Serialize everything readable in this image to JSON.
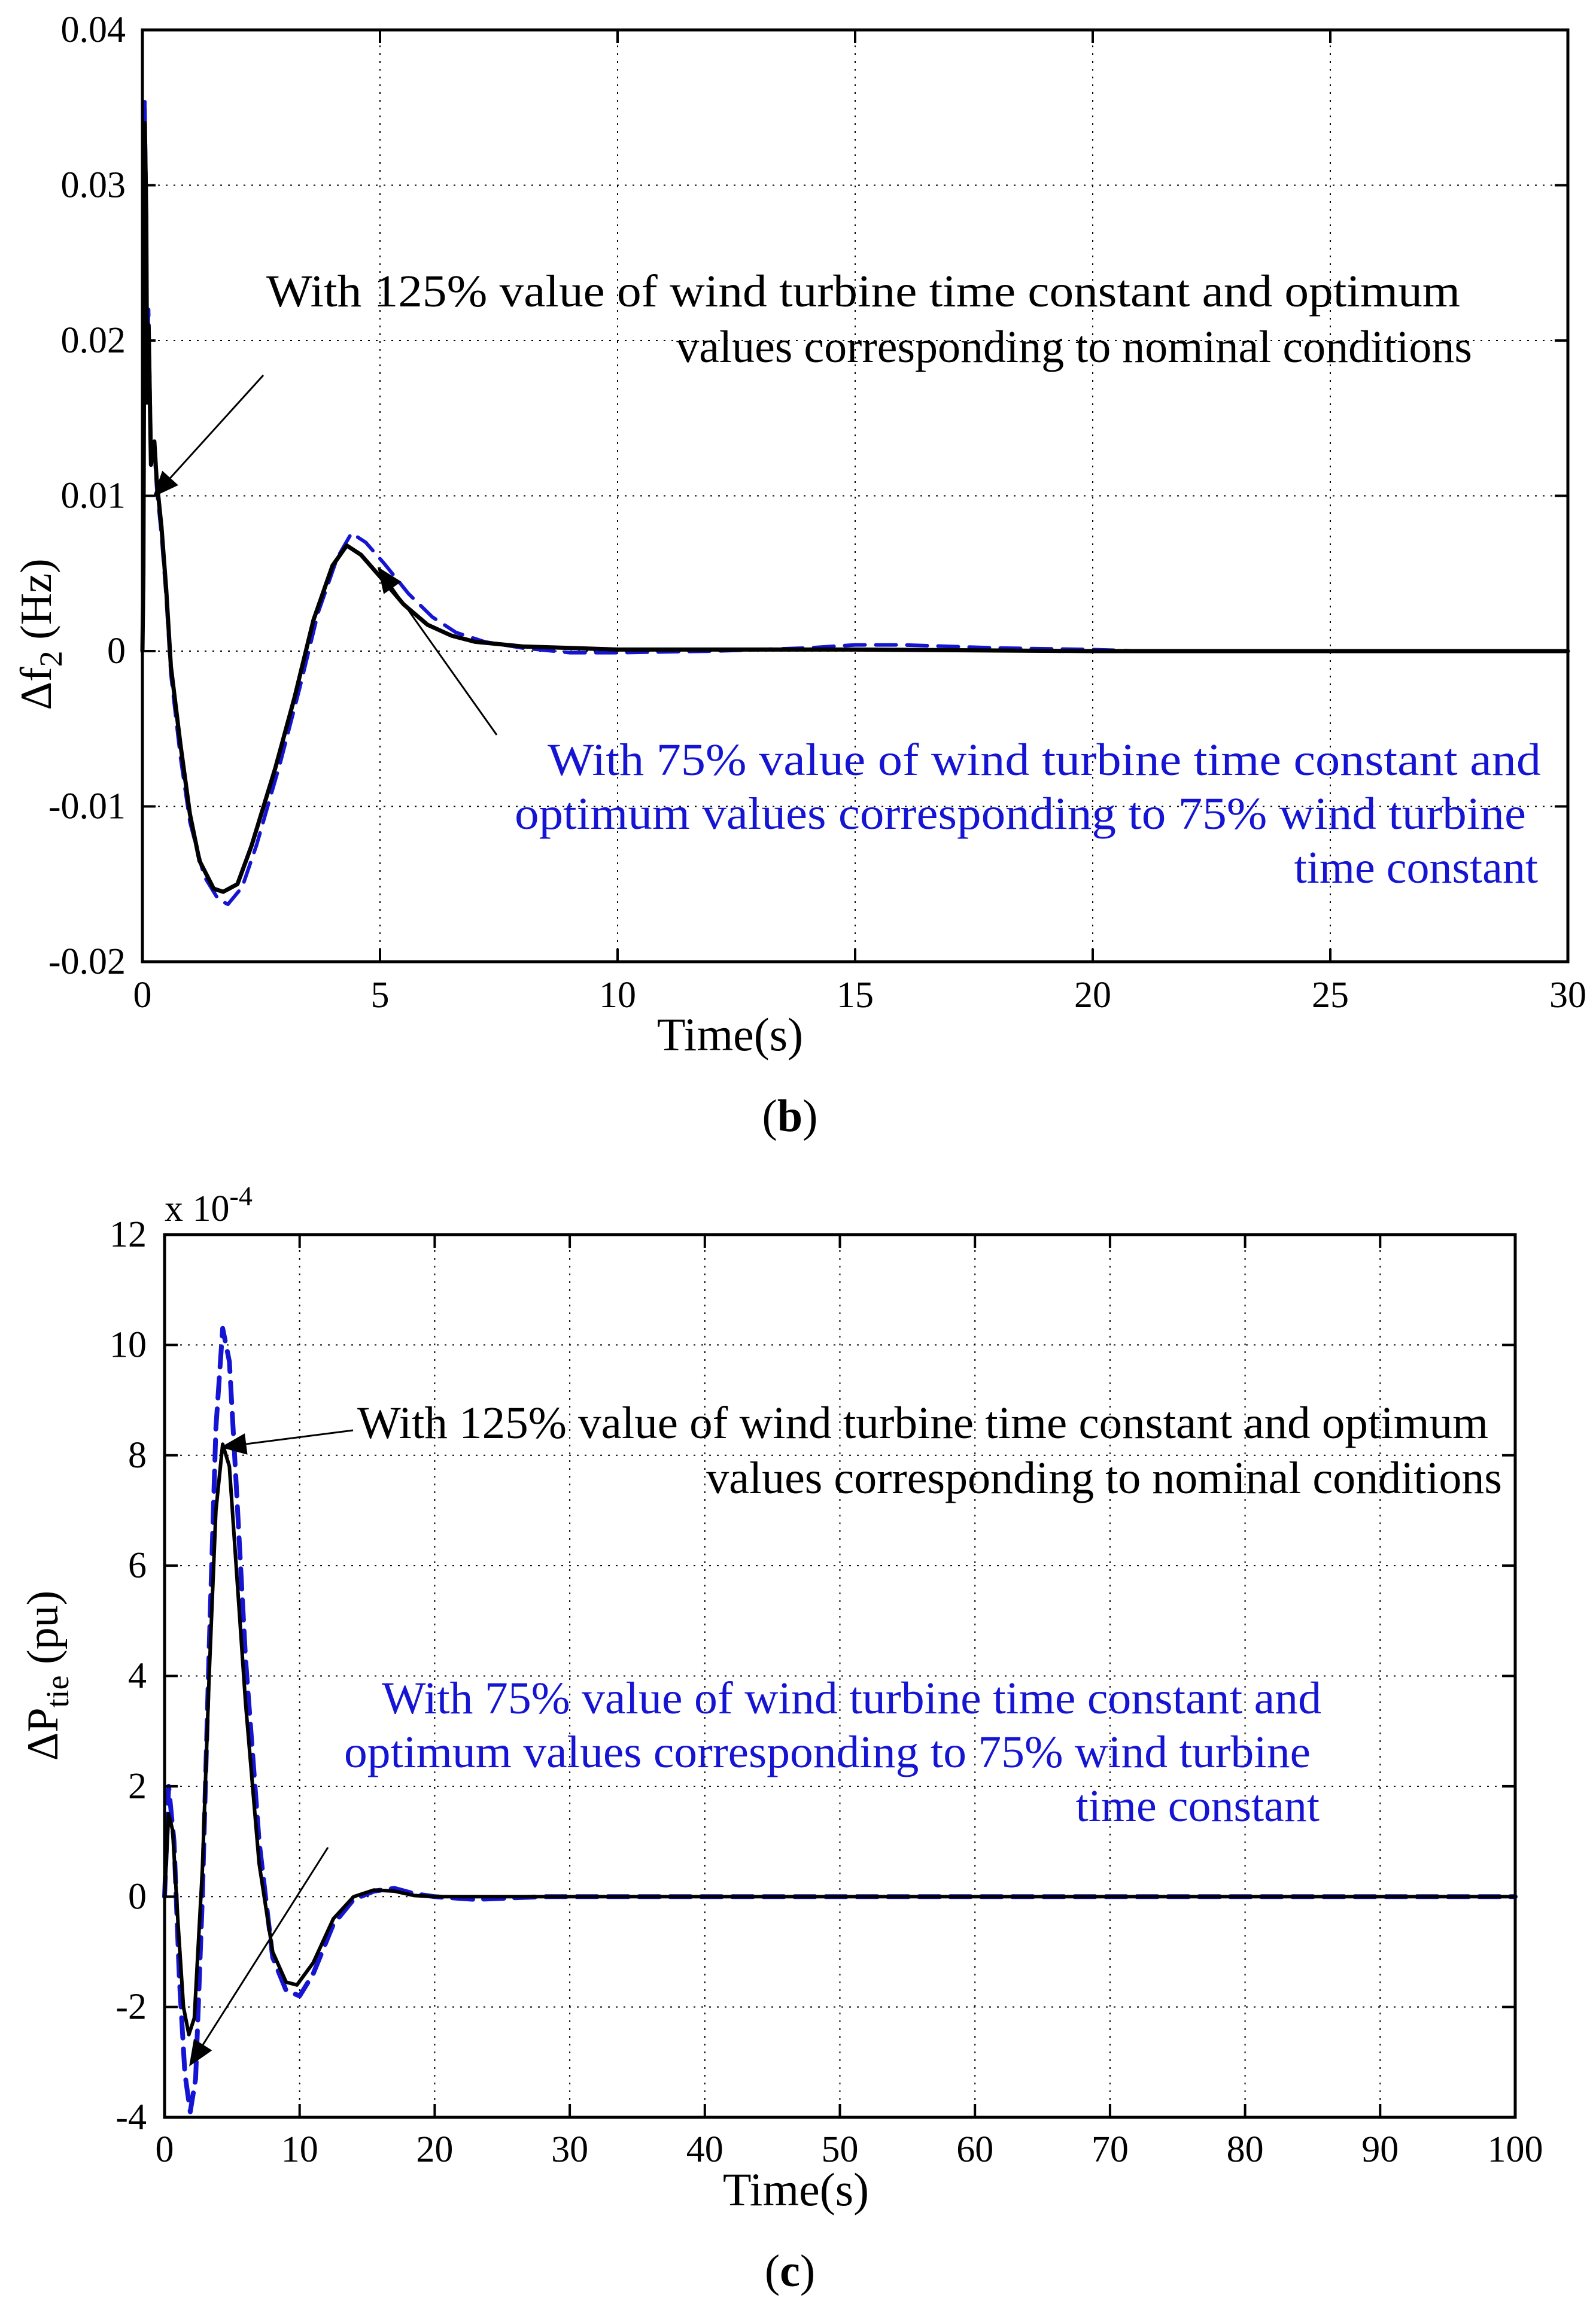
{
  "colors": {
    "black_series": "#000000",
    "blue_series": "#1414d2",
    "grid": "#000000",
    "axis": "#000000"
  },
  "chart_data": [
    {
      "id": "b",
      "type": "line",
      "caption": {
        "open": "(",
        "letter": "b",
        "close": ")"
      },
      "xlabel": "Time(s)",
      "ylabel": {
        "prefix": "Δf",
        "sub": "2",
        "suffix": " (Hz)"
      },
      "xlim": [
        0,
        30
      ],
      "ylim": [
        -0.02,
        0.04
      ],
      "xticks": [
        0,
        5,
        10,
        15,
        20,
        25,
        30
      ],
      "xtick_labels": [
        "0",
        "5",
        "10",
        "15",
        "20",
        "25",
        "30"
      ],
      "yticks": [
        -0.02,
        -0.01,
        0,
        0.01,
        0.02,
        0.03,
        0.04
      ],
      "ytick_labels": [
        "-0.02",
        "-0.01",
        "0",
        "0.01",
        "0.02",
        "0.03",
        "0.04"
      ],
      "grid": true,
      "series": [
        {
          "name": "With 125% value of wind turbine time constant and optimum values corresponding to nominal conditions",
          "color": "#000000",
          "style": "solid",
          "points": [
            [
              0,
              0
            ],
            [
              0.02,
              0.005
            ],
            [
              0.05,
              0.034
            ],
            [
              0.08,
              0.028
            ],
            [
              0.1,
              0.016
            ],
            [
              0.13,
              0.021
            ],
            [
              0.18,
              0.012
            ],
            [
              0.25,
              0.0135
            ],
            [
              0.3,
              0.011
            ],
            [
              0.4,
              0.008
            ],
            [
              0.5,
              0.004
            ],
            [
              0.6,
              -0.001
            ],
            [
              0.8,
              -0.006
            ],
            [
              1.0,
              -0.0105
            ],
            [
              1.2,
              -0.0135
            ],
            [
              1.5,
              -0.0153
            ],
            [
              1.7,
              -0.0155
            ],
            [
              2.0,
              -0.015
            ],
            [
              2.3,
              -0.0125
            ],
            [
              2.8,
              -0.0075
            ],
            [
              3.2,
              -0.003
            ],
            [
              3.6,
              0.002
            ],
            [
              4.0,
              0.0055
            ],
            [
              4.3,
              0.0068
            ],
            [
              4.6,
              0.0062
            ],
            [
              5.0,
              0.0048
            ],
            [
              5.5,
              0.003
            ],
            [
              6.0,
              0.0017
            ],
            [
              6.5,
              0.001
            ],
            [
              7.0,
              0.0006
            ],
            [
              8.0,
              0.0003
            ],
            [
              9.0,
              0.0002
            ],
            [
              10,
              0.0001
            ],
            [
              12,
              0.0001
            ],
            [
              15,
              0.0001
            ],
            [
              20,
              0
            ],
            [
              25,
              0
            ],
            [
              30,
              0
            ]
          ]
        },
        {
          "name": "With 75% value of wind turbine time constant and optimum values corresponding to 75% wind turbine time constant",
          "color": "#1414d2",
          "style": "dashed",
          "points": [
            [
              0,
              0
            ],
            [
              0.02,
              0.004
            ],
            [
              0.05,
              0.0355
            ],
            [
              0.08,
              0.029
            ],
            [
              0.1,
              0.018
            ],
            [
              0.13,
              0.022
            ],
            [
              0.18,
              0.013
            ],
            [
              0.25,
              0.013
            ],
            [
              0.3,
              0.0105
            ],
            [
              0.4,
              0.0075
            ],
            [
              0.5,
              0.0035
            ],
            [
              0.6,
              -0.0015
            ],
            [
              0.8,
              -0.0068
            ],
            [
              1.0,
              -0.011
            ],
            [
              1.3,
              -0.0145
            ],
            [
              1.6,
              -0.016
            ],
            [
              1.8,
              -0.0163
            ],
            [
              2.1,
              -0.0152
            ],
            [
              2.4,
              -0.0125
            ],
            [
              2.9,
              -0.0072
            ],
            [
              3.3,
              -0.0025
            ],
            [
              3.7,
              0.0025
            ],
            [
              4.1,
              0.006
            ],
            [
              4.4,
              0.0076
            ],
            [
              4.7,
              0.007
            ],
            [
              5.1,
              0.0056
            ],
            [
              5.6,
              0.0037
            ],
            [
              6.1,
              0.0022
            ],
            [
              6.6,
              0.0012
            ],
            [
              7.2,
              0.0006
            ],
            [
              8.0,
              0.0002
            ],
            [
              9.0,
              -0.0001
            ],
            [
              10,
              -0.0001
            ],
            [
              12,
              0
            ],
            [
              14,
              0.0002
            ],
            [
              15,
              0.0004
            ],
            [
              16,
              0.0004
            ],
            [
              18,
              0.0002
            ],
            [
              20,
              0.0001
            ],
            [
              21,
              0
            ],
            [
              25,
              0
            ],
            [
              30,
              0
            ]
          ]
        }
      ],
      "annotations": [
        {
          "color": "#000000",
          "lines": [
            "With 125% value of wind turbine time constant and optimum",
            "values corresponding to nominal conditions"
          ],
          "align": [
            "start",
            "end"
          ]
        },
        {
          "color": "#1414d2",
          "lines": [
            "With 75% value of wind turbine time constant and",
            "optimum values corresponding to 75% wind turbine",
            "time constant"
          ],
          "align": [
            "end",
            "end",
            "end"
          ]
        }
      ]
    },
    {
      "id": "c",
      "type": "line",
      "caption": {
        "open": "(",
        "letter": "c",
        "close": ")"
      },
      "xlabel": "Time(s)",
      "ylabel": {
        "prefix": "ΔP",
        "sub": "tie",
        "suffix": " (pu)"
      },
      "exponent_label": {
        "base": "x 10",
        "exp": "-4"
      },
      "xlim": [
        0,
        100
      ],
      "ylim": [
        -4,
        12
      ],
      "xticks": [
        0,
        10,
        20,
        30,
        40,
        50,
        60,
        70,
        80,
        90,
        100
      ],
      "xtick_labels": [
        "0",
        "10",
        "20",
        "30",
        "40",
        "50",
        "60",
        "70",
        "80",
        "90",
        "100"
      ],
      "yticks": [
        -4,
        -2,
        0,
        2,
        4,
        6,
        8,
        10,
        12
      ],
      "ytick_labels": [
        "-4",
        "-2",
        "0",
        "2",
        "4",
        "6",
        "8",
        "10",
        "12"
      ],
      "grid": true,
      "series": [
        {
          "name": "With 125% value of wind turbine time constant and optimum values corresponding to nominal conditions",
          "color": "#000000",
          "style": "solid",
          "points": [
            [
              0,
              0
            ],
            [
              0.3,
              1.5
            ],
            [
              0.6,
              1.2
            ],
            [
              1.0,
              -0.5
            ],
            [
              1.4,
              -2.0
            ],
            [
              1.8,
              -2.5
            ],
            [
              2.2,
              -2.2
            ],
            [
              2.8,
              0.5
            ],
            [
              3.3,
              4.0
            ],
            [
              3.8,
              7.0
            ],
            [
              4.3,
              8.2
            ],
            [
              4.8,
              7.8
            ],
            [
              5.3,
              6.0
            ],
            [
              6.0,
              3.5
            ],
            [
              7.0,
              0.6
            ],
            [
              8.0,
              -1.0
            ],
            [
              9.0,
              -1.55
            ],
            [
              9.8,
              -1.6
            ],
            [
              11,
              -1.2
            ],
            [
              12.5,
              -0.4
            ],
            [
              14,
              0.0
            ],
            [
              15.5,
              0.12
            ],
            [
              17,
              0.1
            ],
            [
              18.5,
              0.02
            ],
            [
              20,
              0
            ],
            [
              25,
              0
            ],
            [
              30,
              0
            ],
            [
              100,
              0
            ]
          ]
        },
        {
          "name": "With 75% value of wind turbine time constant and optimum values corresponding to 75% wind turbine time constant",
          "color": "#1414d2",
          "style": "dashed",
          "points": [
            [
              0,
              0
            ],
            [
              0.3,
              2.0
            ],
            [
              0.7,
              1.0
            ],
            [
              1.1,
              -1.5
            ],
            [
              1.5,
              -3.2
            ],
            [
              1.9,
              -3.9
            ],
            [
              2.3,
              -3.3
            ],
            [
              2.8,
              0.0
            ],
            [
              3.3,
              4.5
            ],
            [
              3.8,
              8.5
            ],
            [
              4.3,
              10.3
            ],
            [
              4.8,
              9.7
            ],
            [
              5.3,
              7.5
            ],
            [
              6.0,
              4.3
            ],
            [
              7.0,
              1.0
            ],
            [
              8.0,
              -1.1
            ],
            [
              9.0,
              -1.7
            ],
            [
              10,
              -1.8
            ],
            [
              11,
              -1.4
            ],
            [
              12.5,
              -0.5
            ],
            [
              14,
              -0.05
            ],
            [
              15.5,
              0.1
            ],
            [
              17,
              0.15
            ],
            [
              18.5,
              0.05
            ],
            [
              20,
              0
            ],
            [
              23,
              -0.05
            ],
            [
              28,
              0
            ],
            [
              100,
              0
            ]
          ]
        }
      ],
      "annotations": [
        {
          "color": "#000000",
          "lines": [
            "With 125% value of wind turbine time constant and optimum",
            "values corresponding to nominal conditions"
          ],
          "align": [
            "start",
            "end"
          ]
        },
        {
          "color": "#1414d2",
          "lines": [
            "With 75% value of wind turbine time constant and",
            "optimum values corresponding to 75% wind turbine",
            "time constant"
          ],
          "align": [
            "start",
            "start",
            "end"
          ]
        }
      ]
    }
  ]
}
